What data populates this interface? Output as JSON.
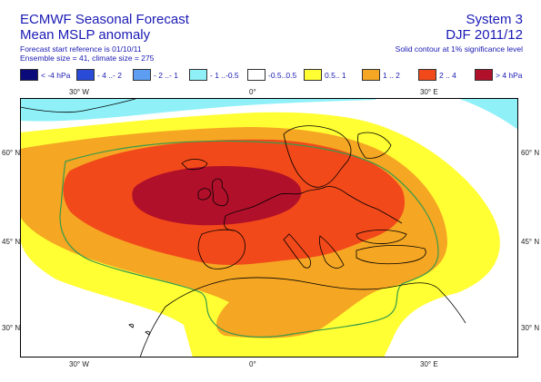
{
  "header": {
    "title": "ECMWF Seasonal Forecast",
    "subtitle": "Mean MSLP anomaly",
    "forecast_ref": "Forecast start reference is 01/10/11",
    "ensemble": "Ensemble size = 41, climate size = 275",
    "system": "System 3",
    "period": "DJF 2011/12",
    "significance": "Solid contour at 1% significance level"
  },
  "legend": {
    "items": [
      {
        "label": "< -4 hPa",
        "color": "#0a0a7a"
      },
      {
        "label": "- 4 ..- 2",
        "color": "#2a4bd8"
      },
      {
        "label": "- 2 ..- 1",
        "color": "#5d9ef2"
      },
      {
        "label": "- 1 ..-0.5",
        "color": "#8ff0f8"
      },
      {
        "label": "-0.5..0.5",
        "color": "#ffffff"
      },
      {
        "label": "0.5.. 1",
        "color": "#ffff33"
      },
      {
        "label": "1 .. 2",
        "color": "#f5a623"
      },
      {
        "label": "2 .. 4",
        "color": "#f2491a"
      },
      {
        "label": "> 4 hPa",
        "color": "#b0102a"
      }
    ]
  },
  "axes": {
    "top_lon": [
      "30° W",
      "0°",
      "30° E"
    ],
    "bottom_lon": [
      "30° W",
      "0°",
      "30° E"
    ],
    "left_lat": [
      "60° N",
      "45° N",
      "30° N"
    ],
    "right_lat": [
      "60° N",
      "45° N",
      "30° N"
    ]
  },
  "colors": {
    "text": "#1a1ab4",
    "coast": "#000000",
    "significance_contour": "#3a9a4a"
  }
}
